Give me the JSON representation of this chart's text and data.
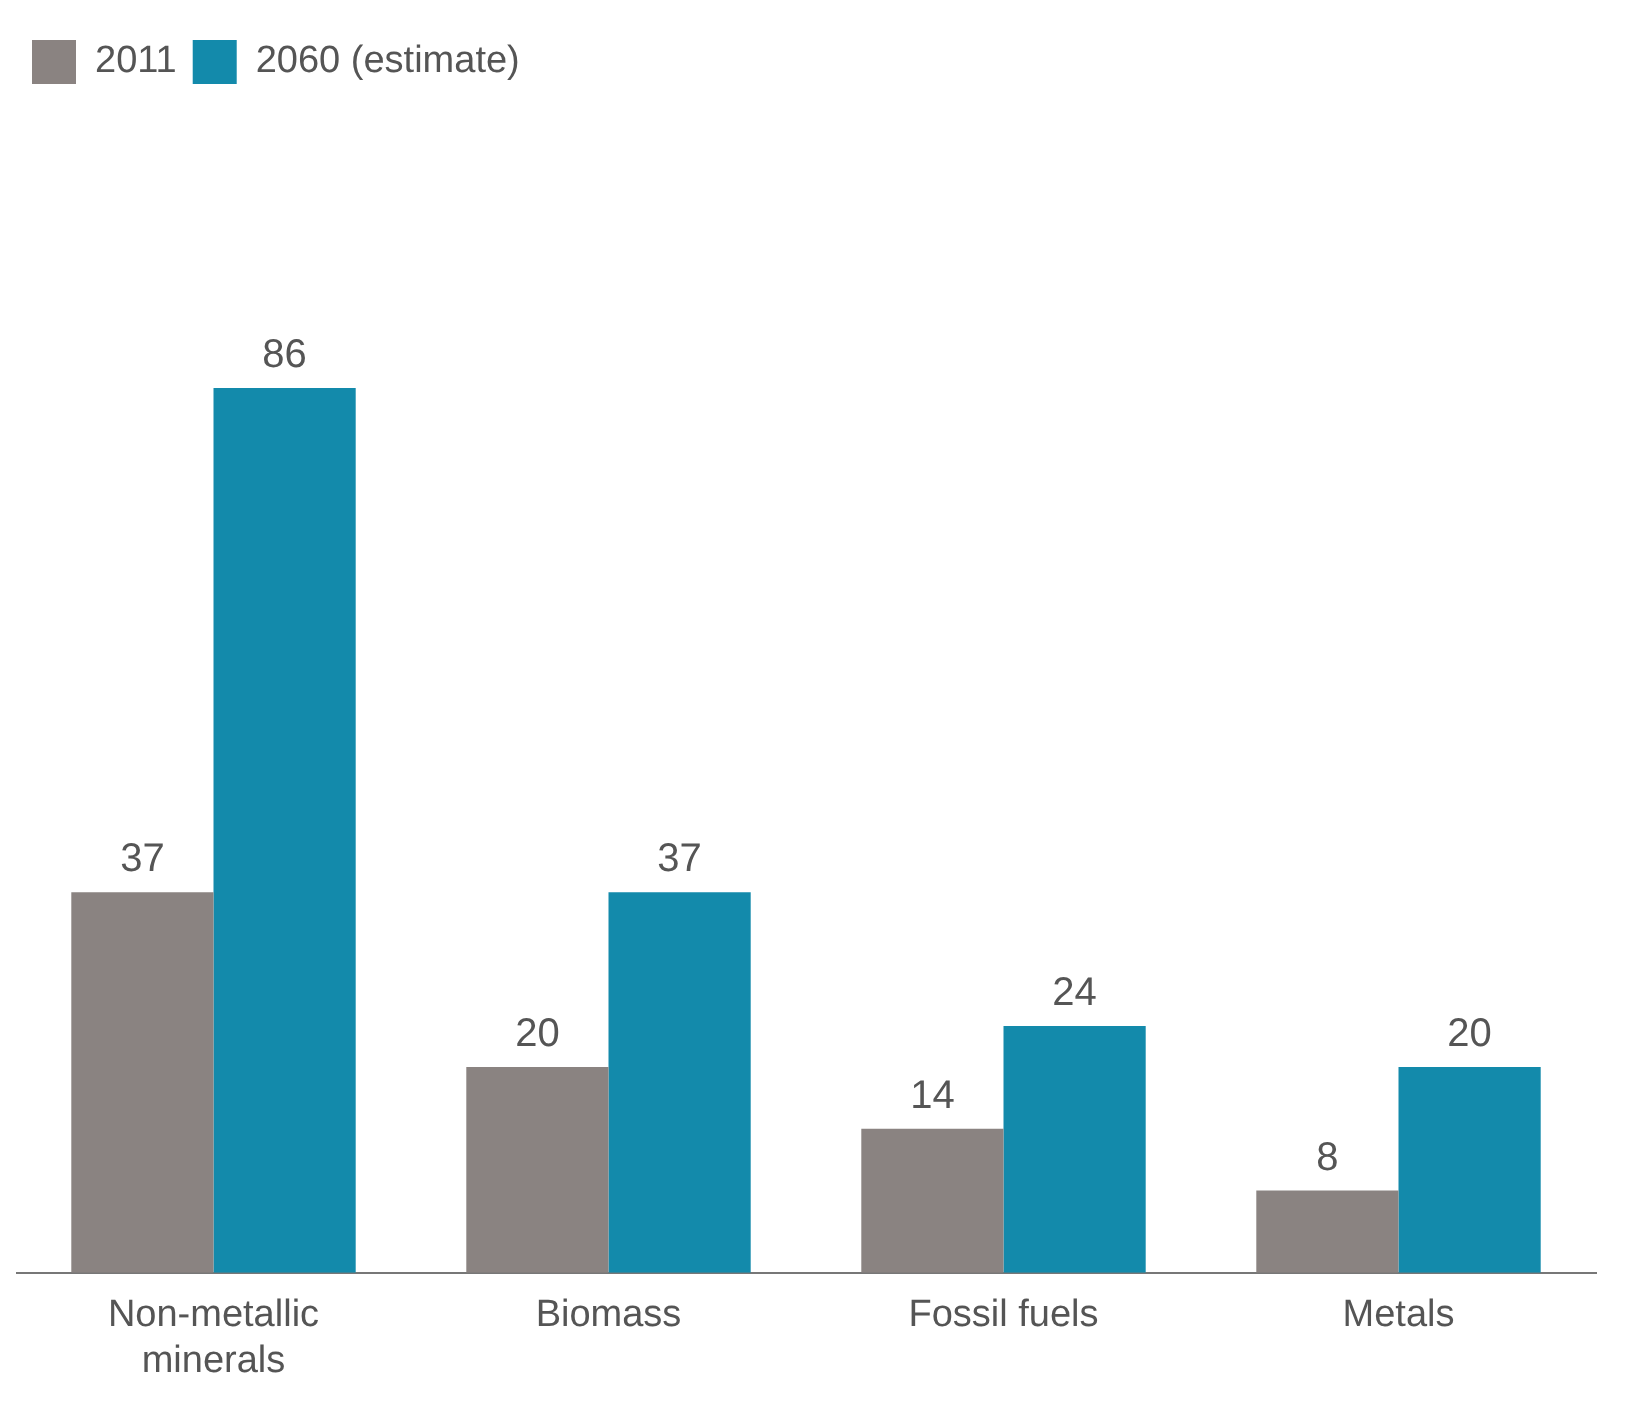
{
  "chart_data": {
    "type": "bar",
    "categories": [
      "Non-metallic minerals",
      "Biomass",
      "Fossil fuels",
      "Metals"
    ],
    "series": [
      {
        "name": "2011",
        "color": "#8a8381",
        "values": [
          37,
          20,
          14,
          8
        ]
      },
      {
        "name": "2060 (estimate)",
        "color": "#138aab",
        "values": [
          86,
          37,
          24,
          20
        ]
      }
    ],
    "data_labels": true,
    "legend": "top left",
    "grid": false
  }
}
